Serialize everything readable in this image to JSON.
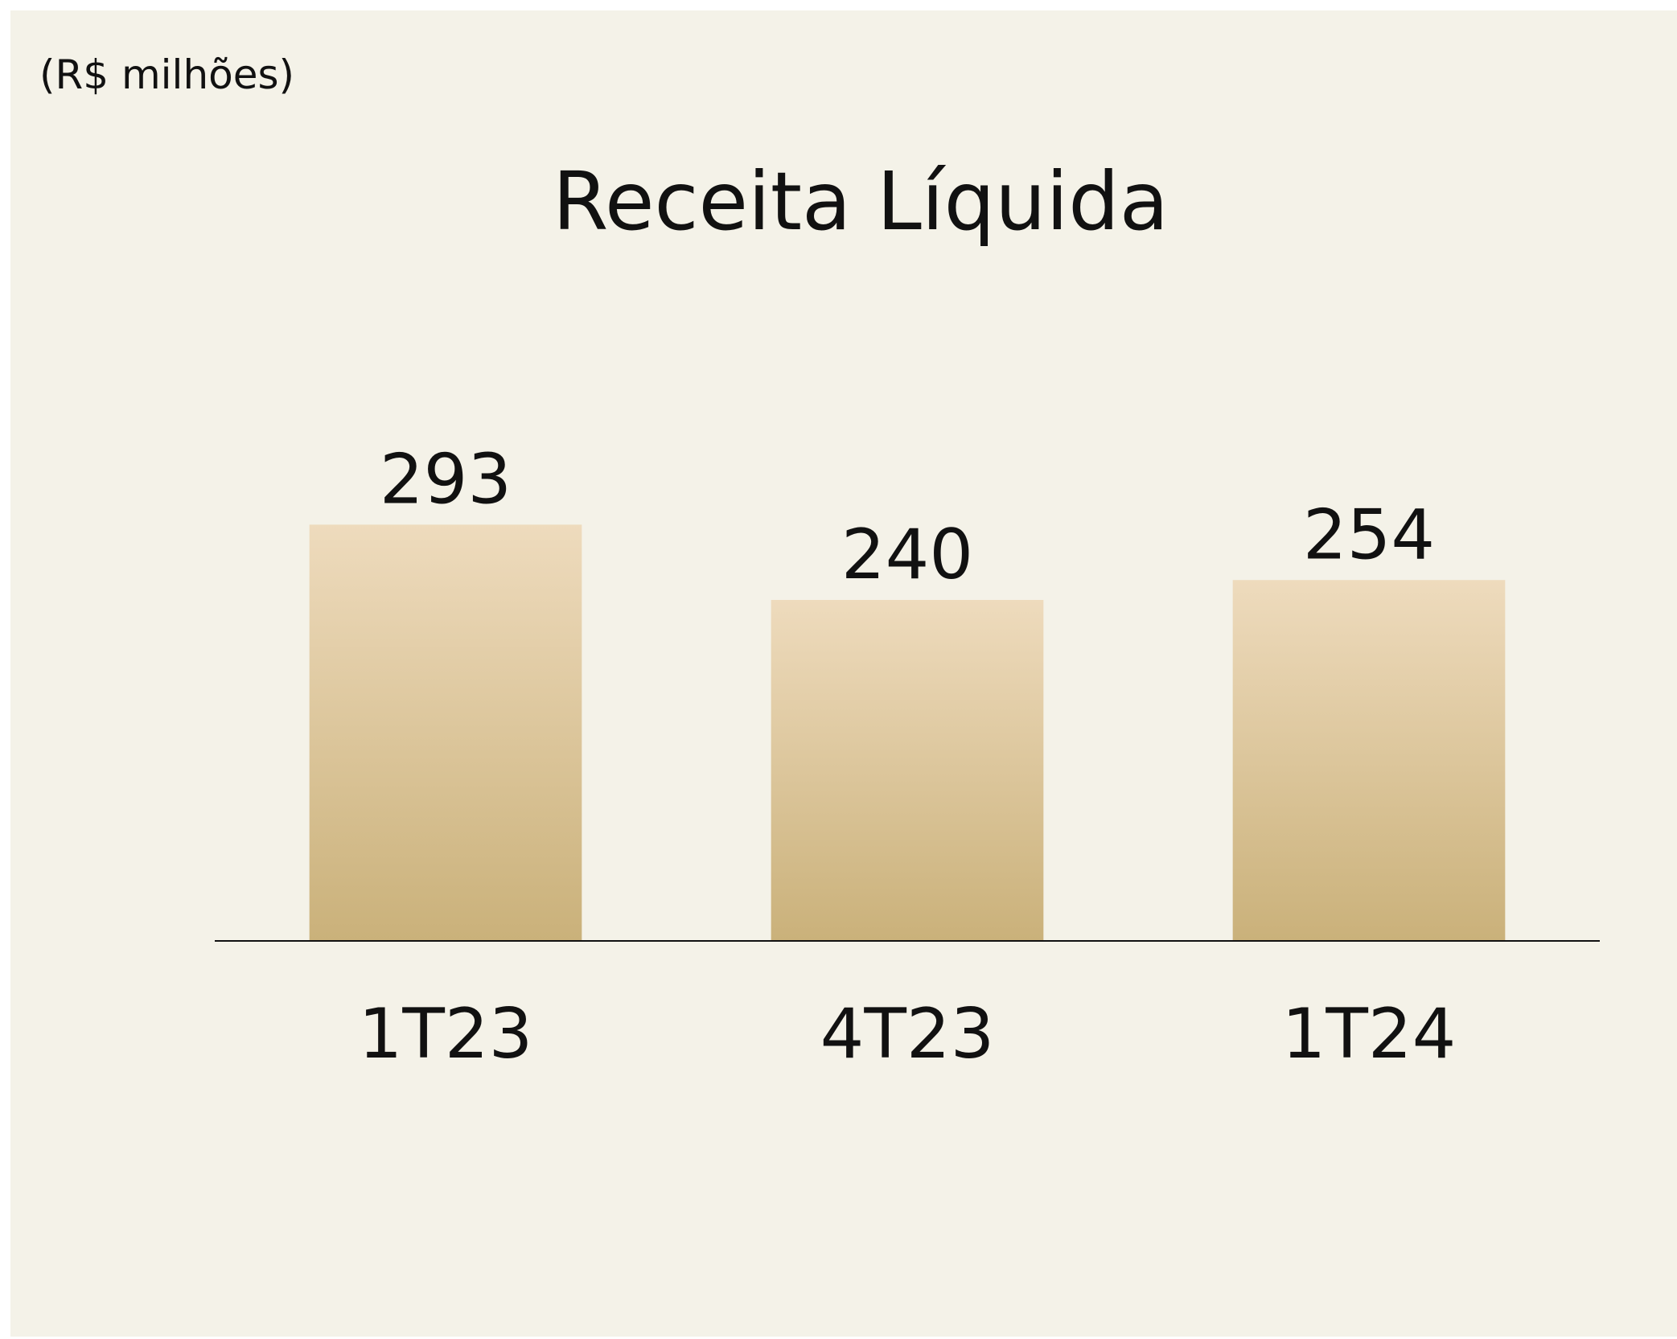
{
  "chart_data": {
    "type": "bar",
    "title": "Receita Líquida",
    "subtitle": "(R$ milhões)",
    "categories": [
      "1T23",
      "4T23",
      "1T24"
    ],
    "values": [
      293,
      240,
      254
    ],
    "color": "#cab17a",
    "ylim": [
      0,
      330
    ]
  }
}
